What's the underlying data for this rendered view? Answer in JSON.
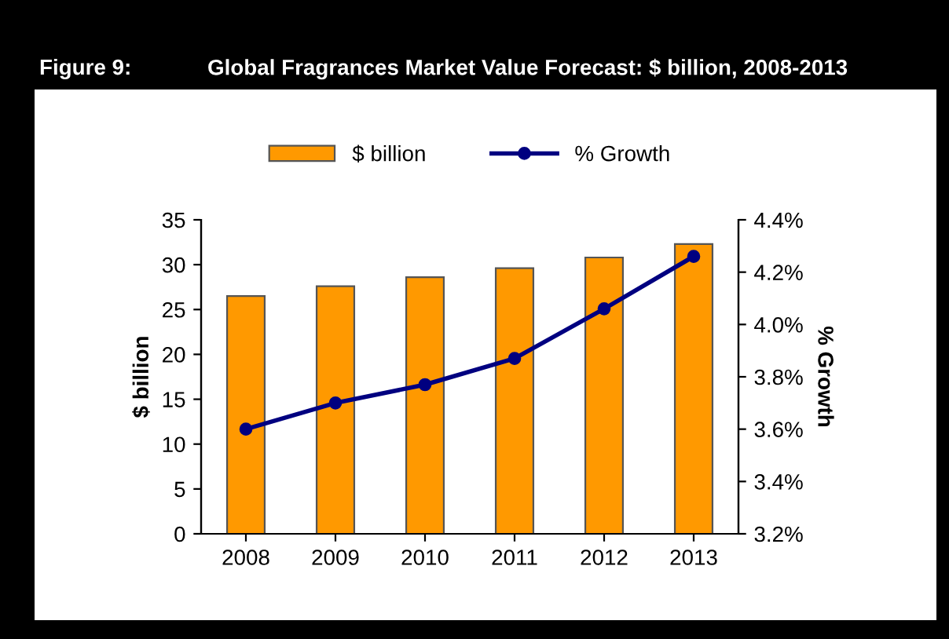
{
  "chart_data": {
    "type": "bar",
    "title": "Global Fragrances Market Value Forecast: $ billion, 2008-2013",
    "annotations": [
      "Figure 9:"
    ],
    "categories": [
      "2008",
      "2009",
      "2010",
      "2011",
      "2012",
      "2013"
    ],
    "series": [
      {
        "name": "$ billion",
        "color": "#ff9900",
        "values": [
          26.5,
          27.6,
          28.6,
          29.6,
          30.8,
          32.3
        ]
      },
      {
        "name": "% Growth",
        "type": "line",
        "axis": "y2",
        "color": "#000080",
        "marker": "circle",
        "values": [
          3.6,
          3.7,
          3.77,
          3.87,
          4.06,
          4.26
        ]
      }
    ],
    "ylabel": "$ billion",
    "y2label": "% Growth",
    "ylim": [
      0,
      35
    ],
    "yticks": [
      0,
      5,
      10,
      15,
      20,
      25,
      30,
      35
    ],
    "y2lim": [
      3.2,
      4.4
    ],
    "y2ticks": [
      {
        "value": 3.2,
        "label": "3.2%"
      },
      {
        "value": 3.4,
        "label": "3.4%"
      },
      {
        "value": 3.6,
        "label": "3.6%"
      },
      {
        "value": 3.8,
        "label": "3.8%"
      },
      {
        "value": 4.0,
        "label": "4.0%"
      },
      {
        "value": 4.2,
        "label": "4.2%"
      },
      {
        "value": 4.4,
        "label": "4.4%"
      }
    ],
    "legend": "top",
    "grid": false
  }
}
